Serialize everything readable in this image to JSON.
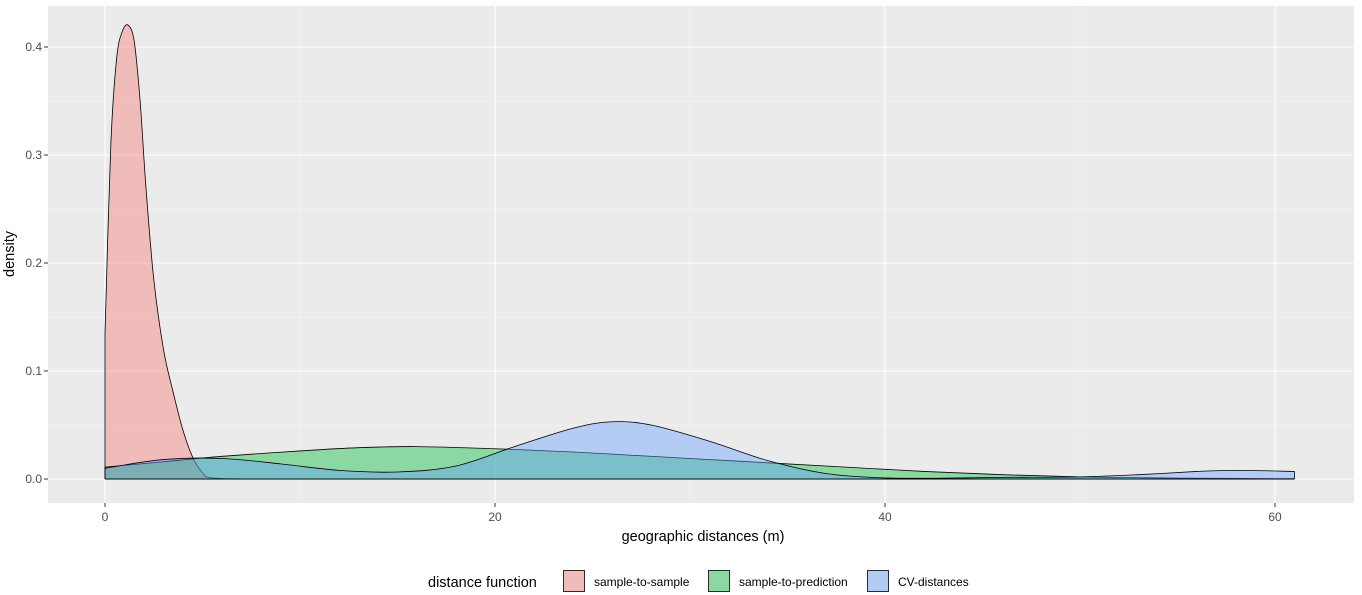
{
  "chart_data": {
    "type": "area",
    "subtype": "density",
    "xlabel": "geographic distances (m)",
    "ylabel": "density",
    "xlim": [
      0,
      61
    ],
    "ylim": [
      0,
      0.42
    ],
    "xticks": [
      0,
      20,
      40,
      60
    ],
    "yticks": [
      0.0,
      0.1,
      0.2,
      0.3,
      0.4
    ],
    "xtick_labels": [
      "0",
      "20",
      "40",
      "60"
    ],
    "ytick_labels": [
      "0.0",
      "0.1",
      "0.2",
      "0.3",
      "0.4"
    ],
    "grid": true,
    "panel_background": "#ebebeb",
    "legend": {
      "title": "distance function",
      "position": "bottom",
      "entries": [
        "sample-to-sample",
        "sample-to-prediction",
        "CV-distances"
      ]
    },
    "series": [
      {
        "name": "sample-to-sample",
        "color": "#f8766d",
        "x": [
          0,
          0.3,
          0.6,
          0.9,
          1.2,
          1.5,
          1.8,
          2.1,
          2.5,
          3.0,
          3.5,
          4.0,
          4.5,
          5.0,
          5.5,
          8,
          15,
          30,
          50,
          61
        ],
        "y": [
          0.135,
          0.31,
          0.39,
          0.415,
          0.42,
          0.405,
          0.35,
          0.27,
          0.185,
          0.12,
          0.08,
          0.045,
          0.02,
          0.006,
          0.001,
          0,
          0,
          0,
          0,
          0
        ]
      },
      {
        "name": "sample-to-prediction",
        "color": "#00ba38",
        "x": [
          0,
          3,
          6,
          10,
          13,
          16,
          20,
          24,
          27,
          30,
          34,
          38,
          42,
          46,
          50,
          54,
          58,
          61
        ],
        "y": [
          0.011,
          0.016,
          0.021,
          0.026,
          0.029,
          0.03,
          0.028,
          0.025,
          0.022,
          0.019,
          0.015,
          0.011,
          0.007,
          0.004,
          0.002,
          0.001,
          0.0005,
          0.0003
        ]
      },
      {
        "name": "CV-distances",
        "color": "#619cff",
        "x": [
          0,
          3,
          6,
          9,
          12,
          15,
          18,
          21,
          24,
          26,
          28,
          31,
          34,
          37,
          40,
          43,
          46,
          50,
          53,
          56,
          58,
          61
        ],
        "y": [
          0.01,
          0.018,
          0.019,
          0.014,
          0.008,
          0.0065,
          0.012,
          0.03,
          0.047,
          0.053,
          0.05,
          0.035,
          0.017,
          0.005,
          0.001,
          0.0008,
          0.0015,
          0.002,
          0.004,
          0.007,
          0.008,
          0.007
        ]
      }
    ]
  }
}
